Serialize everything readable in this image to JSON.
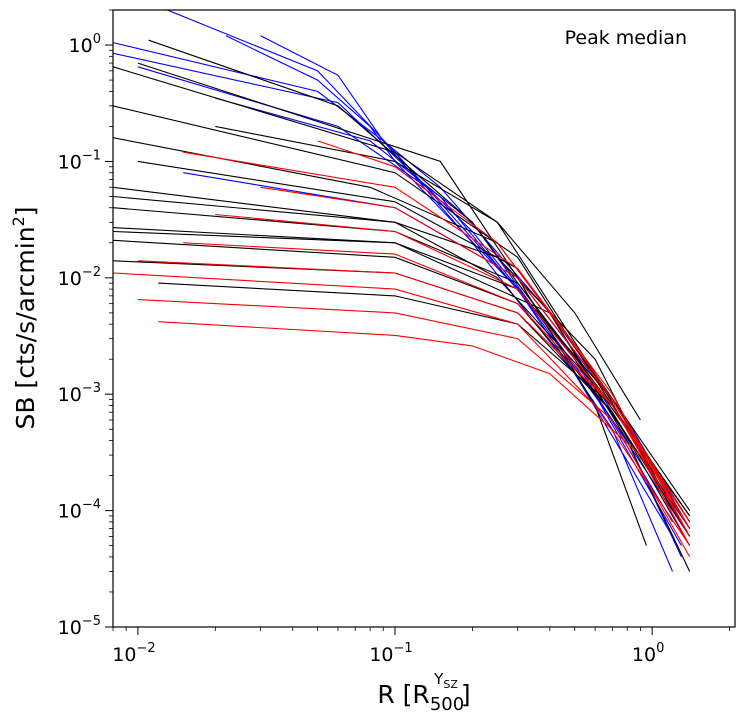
{
  "chart_data": {
    "type": "line",
    "annotation": "Peak median",
    "ylabel": "SB [cts/s/arcmin²]",
    "xlabel_base": "R [R",
    "xlabel_sub": "500",
    "xlabel_sup": "Y",
    "xlabel_sup_sub": "SZ",
    "xlabel_close": "]",
    "xscale": "log",
    "yscale": "log",
    "xlim": [
      0.008,
      2.1
    ],
    "ylim": [
      1e-05,
      2.0
    ],
    "xticks": [
      {
        "base": "10",
        "exp": "−2",
        "value": 0.01
      },
      {
        "base": "10",
        "exp": "−1",
        "value": 0.1
      },
      {
        "base": "10",
        "exp": "0",
        "value": 1
      }
    ],
    "yticks": [
      {
        "base": "10",
        "exp": "−5",
        "value": 1e-05
      },
      {
        "base": "10",
        "exp": "−4",
        "value": 0.0001
      },
      {
        "base": "10",
        "exp": "−3",
        "value": 0.001
      },
      {
        "base": "10",
        "exp": "−2",
        "value": 0.01
      },
      {
        "base": "10",
        "exp": "−1",
        "value": 0.1
      },
      {
        "base": "10",
        "exp": "0",
        "value": 1
      }
    ],
    "grid": false,
    "colors": {
      "black": "#000000",
      "blue": "#0000ff",
      "red": "#ff0000"
    },
    "series": [
      {
        "color": "blue",
        "x": [
          0.008,
          0.05,
          0.09,
          0.2,
          0.5,
          1.2
        ],
        "y": [
          1.05,
          0.4,
          0.15,
          0.02,
          0.0015,
          6e-05
        ]
      },
      {
        "color": "blue",
        "x": [
          0.008,
          0.06,
          0.1,
          0.2,
          0.5,
          1.3
        ],
        "y": [
          0.85,
          0.32,
          0.11,
          0.025,
          0.002,
          5e-05
        ]
      },
      {
        "color": "blue",
        "x": [
          0.013,
          0.05,
          0.1,
          0.3,
          0.7,
          1.2
        ],
        "y": [
          2.0,
          0.6,
          0.12,
          0.008,
          0.0005,
          3e-05
        ]
      },
      {
        "color": "blue",
        "x": [
          0.022,
          0.05,
          0.08,
          0.1,
          0.3,
          0.8,
          1.3
        ],
        "y": [
          1.2,
          0.5,
          0.2,
          0.1,
          0.008,
          0.0004,
          4e-05
        ]
      },
      {
        "color": "blue",
        "x": [
          0.03,
          0.06,
          0.09,
          0.15,
          0.4,
          1.0,
          1.4
        ],
        "y": [
          1.2,
          0.55,
          0.15,
          0.06,
          0.005,
          0.0002,
          6e-05
        ]
      },
      {
        "color": "blue",
        "x": [
          0.01,
          0.06,
          0.15,
          0.5,
          1.2
        ],
        "y": [
          0.65,
          0.2,
          0.05,
          0.002,
          8e-05
        ]
      },
      {
        "color": "blue",
        "x": [
          0.02,
          0.08,
          0.2,
          0.6,
          1.4
        ],
        "y": [
          0.35,
          0.15,
          0.03,
          0.001,
          6e-05
        ]
      },
      {
        "color": "blue",
        "x": [
          0.015,
          0.1,
          0.3,
          0.8,
          1.4
        ],
        "y": [
          0.08,
          0.04,
          0.01,
          0.0006,
          7e-05
        ]
      },
      {
        "color": "black",
        "x": [
          0.011,
          0.06,
          0.2,
          0.5,
          1.4
        ],
        "y": [
          1.1,
          0.3,
          0.03,
          0.002,
          7e-05
        ]
      },
      {
        "color": "black",
        "x": [
          0.008,
          0.1,
          0.25,
          0.6,
          1.4
        ],
        "y": [
          0.65,
          0.12,
          0.03,
          0.0015,
          6e-05
        ]
      },
      {
        "color": "black",
        "x": [
          0.008,
          0.1,
          0.3,
          0.7,
          1.4
        ],
        "y": [
          0.3,
          0.08,
          0.015,
          0.0008,
          8e-05
        ]
      },
      {
        "color": "black",
        "x": [
          0.008,
          0.08,
          0.25,
          0.6,
          1.4
        ],
        "y": [
          0.16,
          0.06,
          0.02,
          0.0015,
          0.0001
        ]
      },
      {
        "color": "black",
        "x": [
          0.01,
          0.1,
          0.3,
          0.7,
          1.4
        ],
        "y": [
          0.1,
          0.045,
          0.012,
          0.0009,
          7e-05
        ]
      },
      {
        "color": "black",
        "x": [
          0.008,
          0.1,
          0.25,
          0.6,
          1.4
        ],
        "y": [
          0.06,
          0.03,
          0.01,
          0.0012,
          9e-05
        ]
      },
      {
        "color": "black",
        "x": [
          0.008,
          0.1,
          0.3,
          0.7,
          1.4
        ],
        "y": [
          0.04,
          0.025,
          0.009,
          0.0008,
          6e-05
        ]
      },
      {
        "color": "black",
        "x": [
          0.008,
          0.1,
          0.3,
          0.7,
          1.4
        ],
        "y": [
          0.027,
          0.02,
          0.008,
          0.0009,
          8e-05
        ]
      },
      {
        "color": "black",
        "x": [
          0.008,
          0.1,
          0.3,
          0.7,
          1.4
        ],
        "y": [
          0.021,
          0.015,
          0.006,
          0.0007,
          5e-05
        ]
      },
      {
        "color": "black",
        "x": [
          0.008,
          0.1,
          0.3,
          0.7,
          1.4
        ],
        "y": [
          0.014,
          0.011,
          0.005,
          0.0007,
          6e-05
        ]
      },
      {
        "color": "black",
        "x": [
          0.012,
          0.1,
          0.3,
          0.7,
          1.4
        ],
        "y": [
          0.009,
          0.007,
          0.004,
          0.0008,
          9e-05
        ]
      },
      {
        "color": "black",
        "x": [
          0.02,
          0.1,
          0.25,
          0.5,
          0.9
        ],
        "y": [
          0.2,
          0.1,
          0.03,
          0.005,
          0.0006
        ]
      },
      {
        "color": "black",
        "x": [
          0.008,
          0.1,
          0.25,
          0.6,
          1.2
        ],
        "y": [
          0.05,
          0.03,
          0.015,
          0.002,
          0.0001
        ]
      },
      {
        "color": "black",
        "x": [
          0.008,
          0.1,
          0.4,
          0.8,
          1.4
        ],
        "y": [
          0.025,
          0.02,
          0.005,
          0.0004,
          3e-05
        ]
      },
      {
        "color": "black",
        "x": [
          0.01,
          0.15,
          0.3,
          0.6,
          0.95
        ],
        "y": [
          0.7,
          0.1,
          0.01,
          0.0008,
          5e-05
        ]
      },
      {
        "color": "red",
        "x": [
          0.008,
          0.1,
          0.3,
          0.6,
          1.4
        ],
        "y": [
          0.011,
          0.008,
          0.004,
          0.0008,
          5e-05
        ]
      },
      {
        "color": "red",
        "x": [
          0.01,
          0.1,
          0.3,
          0.7,
          1.4
        ],
        "y": [
          0.0065,
          0.005,
          0.003,
          0.0006,
          4e-05
        ]
      },
      {
        "color": "red",
        "x": [
          0.012,
          0.1,
          0.2,
          0.4,
          0.9,
          1.4
        ],
        "y": [
          0.0042,
          0.0032,
          0.0026,
          0.0015,
          0.0003,
          5e-05
        ]
      },
      {
        "color": "red",
        "x": [
          0.01,
          0.1,
          0.3,
          0.7,
          1.4
        ],
        "y": [
          0.014,
          0.011,
          0.005,
          0.0008,
          6e-05
        ]
      },
      {
        "color": "red",
        "x": [
          0.015,
          0.1,
          0.3,
          0.7,
          1.4
        ],
        "y": [
          0.02,
          0.016,
          0.006,
          0.0008,
          7e-05
        ]
      },
      {
        "color": "red",
        "x": [
          0.02,
          0.1,
          0.3,
          0.7,
          1.4
        ],
        "y": [
          0.035,
          0.025,
          0.008,
          0.0008,
          8e-05
        ]
      },
      {
        "color": "red",
        "x": [
          0.03,
          0.1,
          0.3,
          0.7,
          1.4
        ],
        "y": [
          0.06,
          0.04,
          0.01,
          0.0009,
          7e-05
        ]
      },
      {
        "color": "red",
        "x": [
          0.05,
          0.1,
          0.25,
          0.6,
          1.4
        ],
        "y": [
          0.15,
          0.09,
          0.02,
          0.0015,
          8e-05
        ]
      },
      {
        "color": "red",
        "x": [
          0.015,
          0.1,
          0.3,
          0.7,
          1.4
        ],
        "y": [
          0.12,
          0.06,
          0.012,
          0.001,
          6e-05
        ]
      }
    ]
  }
}
